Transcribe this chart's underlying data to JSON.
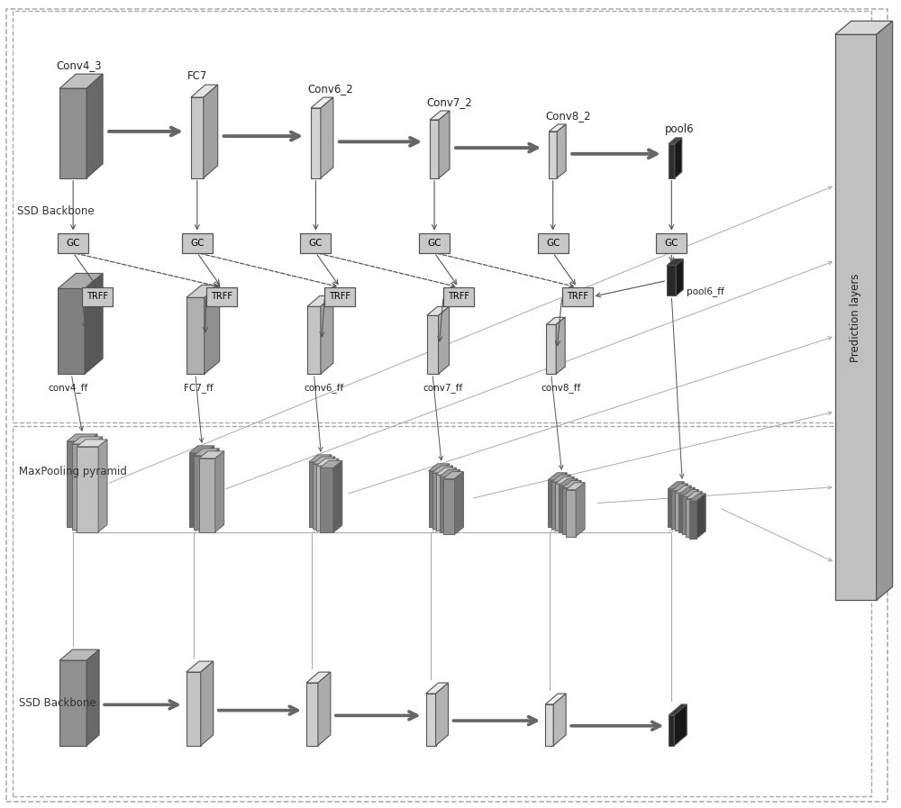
{
  "bg_color": "#ffffff",
  "box_color": "#c8c8c8",
  "box_edge": "#555555",
  "dark_box_color": "#444444",
  "gc_color": "#c8c8c8",
  "gc_edge": "#555555",
  "trff_color": "#c8c8c8",
  "arrow_color": "#555555",
  "dashed_color": "#333333",
  "outer_dash_color": "#888888",
  "font_size": 9,
  "title_font_size": 10,
  "prediction_color": "#bbbbbb",
  "top_labels": [
    "Conv4_3",
    "FC7",
    "Conv6_2",
    "Conv7_2",
    "Conv8_2",
    "pool6"
  ],
  "ff_labels": [
    "conv4_ff",
    "FC7_ff",
    "conv6_ff",
    "conv7_ff",
    "conv8_ff"
  ],
  "upper_label": "SSD Backbone",
  "lower_label": "SSD Backbone",
  "mp_label": "MaxPooling pyramid",
  "pred_label": "Prediction layers"
}
